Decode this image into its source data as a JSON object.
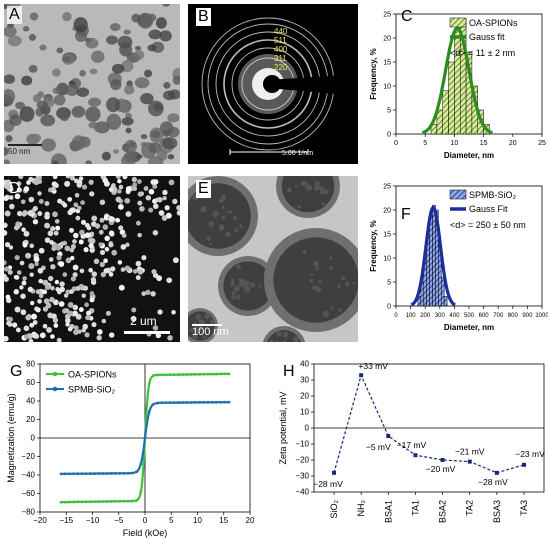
{
  "panels": {
    "a": {
      "letter": "A",
      "scalebar": "50 nm"
    },
    "b": {
      "letter": "B",
      "rings": [
        "440",
        "511",
        "400",
        "311",
        "220"
      ],
      "scalebar": "5.00 1/nm"
    },
    "c": {
      "letter": "C"
    },
    "d": {
      "letter": "D",
      "scalebar": "2 um"
    },
    "e": {
      "letter": "E",
      "scalebar": "100 nm"
    },
    "f": {
      "letter": "F"
    },
    "g": {
      "letter": "G"
    },
    "h": {
      "letter": "H"
    }
  },
  "colors": {
    "green": "#2e8b1f",
    "green_light": "#d8ec9a",
    "blue": "#1a2e9e",
    "blue_light": "#8fa6e6",
    "teal": "#1f6fae",
    "lime": "#3cc23c"
  },
  "chart_data": [
    {
      "type": "bar",
      "id": "C",
      "xlabel": "Diameter, nm",
      "ylabel": "Frequency, %",
      "xlim": [
        0,
        25
      ],
      "ylim": [
        0,
        25
      ],
      "xticks": [
        0,
        5,
        10,
        15,
        20,
        25
      ],
      "yticks": [
        0,
        5,
        10,
        15,
        20,
        25
      ],
      "bin_width": 1,
      "bins": [
        6,
        7,
        8,
        9,
        10,
        11,
        12,
        13,
        14,
        15
      ],
      "values": [
        2,
        5,
        9,
        15,
        22,
        24,
        17,
        10,
        5,
        2
      ],
      "series": [
        {
          "name": "OA-SPIONs"
        },
        {
          "name": "Gauss fit"
        }
      ],
      "annotation": "<d> = 11 ± 2 nm",
      "fit": {
        "mean": 10.5,
        "sigma": 2,
        "peak": 22
      }
    },
    {
      "type": "bar",
      "id": "F",
      "xlabel": "Diameter, nm",
      "ylabel": "Frequency, %",
      "xlim": [
        0,
        1000
      ],
      "ylim": [
        0,
        25
      ],
      "xticks": [
        0,
        100,
        200,
        300,
        400,
        500,
        600,
        700,
        800,
        900,
        1000
      ],
      "yticks": [
        0,
        5,
        10,
        15,
        20,
        25
      ],
      "bin_width": 20,
      "bins": [
        150,
        170,
        190,
        210,
        230,
        250,
        270,
        290,
        310,
        330
      ],
      "values": [
        2,
        5,
        10,
        15,
        19,
        21,
        20,
        13,
        6,
        2
      ],
      "series": [
        {
          "name": "SPMB-SiO₂"
        },
        {
          "name": "Gauss Fit"
        }
      ],
      "annotation": "<d> = 250 ± 50 nm",
      "fit": {
        "mean": 255,
        "sigma": 50,
        "peak": 20.5
      }
    },
    {
      "type": "line",
      "id": "G",
      "xlabel": "Field (kOe)",
      "ylabel": "Magnetization (emu/g)",
      "xlim": [
        -20,
        20
      ],
      "ylim": [
        -80,
        80
      ],
      "xticks": [
        -20,
        -15,
        -10,
        -5,
        0,
        5,
        10,
        15,
        20
      ],
      "yticks": [
        -80,
        -60,
        -40,
        -20,
        0,
        20,
        40,
        60,
        80
      ],
      "series": [
        {
          "name": "OA-SPIONs",
          "ms": 68,
          "k": 0.55
        },
        {
          "name": "SPMB-SiO₂",
          "ms": 38,
          "k": 0.75
        }
      ],
      "x_range": [
        -16,
        16
      ]
    },
    {
      "type": "line",
      "id": "H",
      "ylabel": "Zeta potential, mV",
      "ylim": [
        -40,
        40
      ],
      "yticks": [
        -40,
        -30,
        -20,
        -10,
        0,
        10,
        20,
        30,
        40
      ],
      "categories": [
        "SiO₂",
        "NH₂",
        "BSA1",
        "TA1",
        "BSA2",
        "TA2",
        "BSA3",
        "TA3"
      ],
      "values": [
        -28,
        33,
        -5,
        -17,
        -20,
        -21,
        -28,
        -23
      ],
      "labels": [
        "−28 mV",
        "+33 mV",
        "−5 mV",
        "−17 mV",
        "−20 mV",
        "−21 mV",
        "−28 mV",
        "−23 mV"
      ]
    }
  ]
}
